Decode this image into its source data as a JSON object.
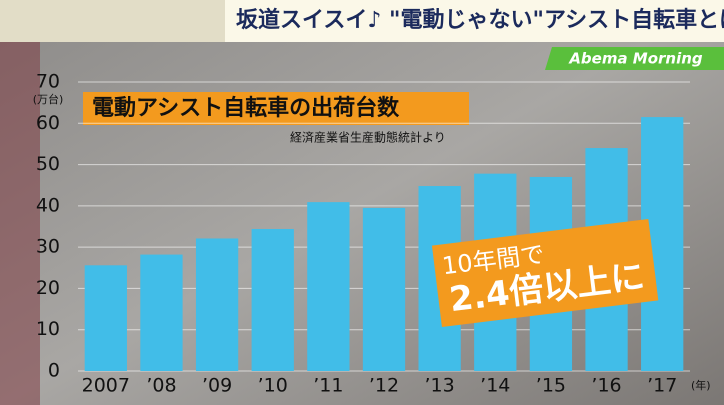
{
  "header": {
    "title": "坂道スイスイ♪ \"電動じゃない\"アシスト自転車とは?",
    "logo": "Abema Morning"
  },
  "chart_data": {
    "type": "bar",
    "title": "電動アシスト自転車の出荷台数",
    "subtitle": "経済産業省生産動態統計より",
    "y_unit": "(万台)",
    "x_unit": "(年)",
    "categories": [
      "2007",
      "’08",
      "’09",
      "’10",
      "’11",
      "’12",
      "’13",
      "’14",
      "’15",
      "’16",
      "’17"
    ],
    "values": [
      25.6,
      28.2,
      32.1,
      34.4,
      40.9,
      39.5,
      44.8,
      47.8,
      47.0,
      54.0,
      61.5
    ],
    "color": "#41bde8",
    "ylim": [
      0,
      70
    ],
    "yticks": [
      0,
      10,
      20,
      30,
      40,
      50,
      60,
      70
    ],
    "grid": true,
    "annotations": [
      "10年間で",
      "2.4倍以上に"
    ]
  }
}
